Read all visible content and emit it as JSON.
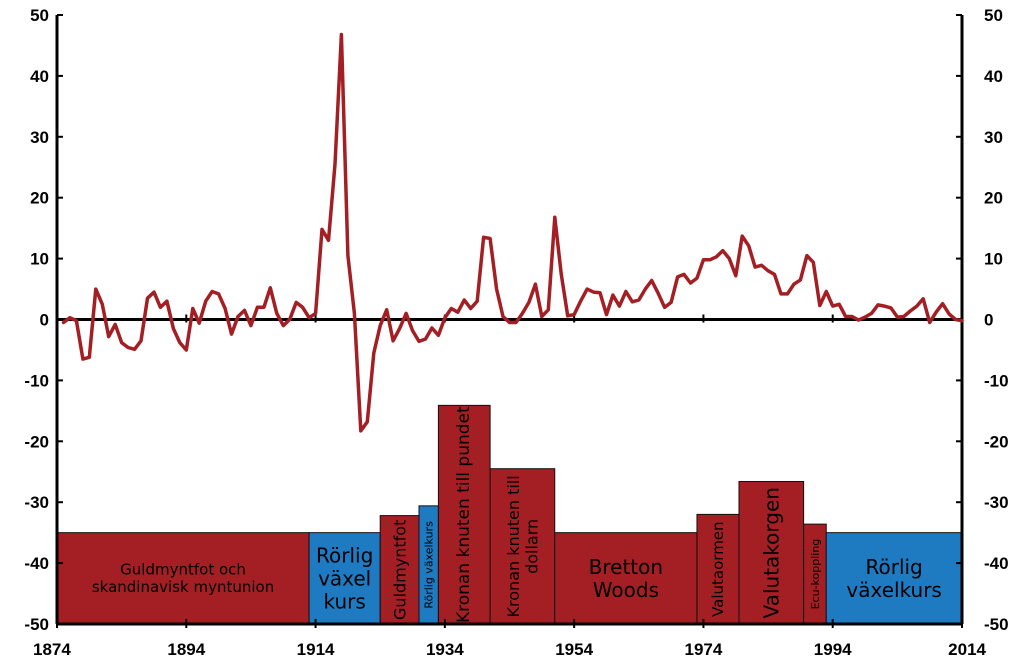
{
  "chart_data": {
    "type": "line",
    "title": "",
    "xlabel": "",
    "ylabel": "",
    "xlim": [
      1874,
      2014
    ],
    "ylim": [
      -50,
      50
    ],
    "grid": false,
    "x_ticks": [
      "1874",
      "1894",
      "1914",
      "1934",
      "1954",
      "1974",
      "1994",
      "2014"
    ],
    "y_ticks": [
      "50",
      "40",
      "30",
      "20",
      "10",
      "0",
      "-10",
      "-20",
      "-30",
      "-40",
      "-50"
    ],
    "series": [
      {
        "color": "#a31f24",
        "points": [
          [
            1875,
            -0.5
          ],
          [
            1876,
            0.3
          ],
          [
            1877,
            -0.2
          ],
          [
            1878,
            -6.5
          ],
          [
            1879,
            -6.2
          ],
          [
            1880,
            5.0
          ],
          [
            1881,
            2.5
          ],
          [
            1882,
            -2.8
          ],
          [
            1883,
            -0.8
          ],
          [
            1884,
            -3.8
          ],
          [
            1885,
            -4.6
          ],
          [
            1886,
            -4.9
          ],
          [
            1887,
            -3.5
          ],
          [
            1888,
            3.5
          ],
          [
            1889,
            4.5
          ],
          [
            1890,
            2.0
          ],
          [
            1891,
            3.0
          ],
          [
            1892,
            -1.5
          ],
          [
            1893,
            -3.8
          ],
          [
            1894,
            -5.0
          ],
          [
            1895,
            1.8
          ],
          [
            1896,
            -0.6
          ],
          [
            1897,
            3.0
          ],
          [
            1898,
            4.6
          ],
          [
            1899,
            4.2
          ],
          [
            1900,
            1.8
          ],
          [
            1901,
            -2.4
          ],
          [
            1902,
            0.5
          ],
          [
            1903,
            1.5
          ],
          [
            1904,
            -1.0
          ],
          [
            1905,
            2.0
          ],
          [
            1906,
            2.0
          ],
          [
            1907,
            5.2
          ],
          [
            1908,
            1.0
          ],
          [
            1909,
            -1.0
          ],
          [
            1910,
            0.0
          ],
          [
            1911,
            2.8
          ],
          [
            1912,
            2.0
          ],
          [
            1913,
            0.3
          ],
          [
            1914,
            1.0
          ],
          [
            1915,
            14.8
          ],
          [
            1916,
            13.0
          ],
          [
            1917,
            25.5
          ],
          [
            1918,
            46.8
          ],
          [
            1919,
            10.5
          ],
          [
            1920,
            1.0
          ],
          [
            1921,
            -18.3
          ],
          [
            1922,
            -16.8
          ],
          [
            1923,
            -5.5
          ],
          [
            1924,
            -1.0
          ],
          [
            1925,
            1.6
          ],
          [
            1926,
            -3.5
          ],
          [
            1927,
            -1.5
          ],
          [
            1928,
            1.0
          ],
          [
            1929,
            -1.8
          ],
          [
            1930,
            -3.6
          ],
          [
            1931,
            -3.2
          ],
          [
            1932,
            -1.4
          ],
          [
            1933,
            -2.6
          ],
          [
            1934,
            0.3
          ],
          [
            1935,
            1.8
          ],
          [
            1936,
            1.2
          ],
          [
            1937,
            3.2
          ],
          [
            1938,
            1.8
          ],
          [
            1939,
            3.0
          ],
          [
            1940,
            13.5
          ],
          [
            1941,
            13.3
          ],
          [
            1942,
            5.0
          ],
          [
            1943,
            0.5
          ],
          [
            1944,
            -0.5
          ],
          [
            1945,
            -0.5
          ],
          [
            1946,
            1.0
          ],
          [
            1947,
            2.8
          ],
          [
            1948,
            5.8
          ],
          [
            1949,
            0.5
          ],
          [
            1950,
            1.6
          ],
          [
            1951,
            16.8
          ],
          [
            1952,
            7.5
          ],
          [
            1953,
            0.6
          ],
          [
            1954,
            0.8
          ],
          [
            1955,
            3.0
          ],
          [
            1956,
            5.0
          ],
          [
            1957,
            4.5
          ],
          [
            1958,
            4.4
          ],
          [
            1959,
            0.8
          ],
          [
            1960,
            4.0
          ],
          [
            1961,
            2.2
          ],
          [
            1962,
            4.6
          ],
          [
            1963,
            2.9
          ],
          [
            1964,
            3.2
          ],
          [
            1965,
            5.0
          ],
          [
            1966,
            6.4
          ],
          [
            1967,
            4.3
          ],
          [
            1968,
            2.0
          ],
          [
            1969,
            2.8
          ],
          [
            1970,
            7.0
          ],
          [
            1971,
            7.4
          ],
          [
            1972,
            6.0
          ],
          [
            1973,
            6.8
          ],
          [
            1974,
            9.8
          ],
          [
            1975,
            9.8
          ],
          [
            1976,
            10.3
          ],
          [
            1977,
            11.3
          ],
          [
            1978,
            10.0
          ],
          [
            1979,
            7.2
          ],
          [
            1980,
            13.7
          ],
          [
            1981,
            12.1
          ],
          [
            1982,
            8.6
          ],
          [
            1983,
            8.9
          ],
          [
            1984,
            8.0
          ],
          [
            1985,
            7.4
          ],
          [
            1986,
            4.2
          ],
          [
            1987,
            4.2
          ],
          [
            1988,
            5.8
          ],
          [
            1989,
            6.5
          ],
          [
            1990,
            10.5
          ],
          [
            1991,
            9.4
          ],
          [
            1992,
            2.3
          ],
          [
            1993,
            4.6
          ],
          [
            1994,
            2.2
          ],
          [
            1995,
            2.5
          ],
          [
            1996,
            0.5
          ],
          [
            1997,
            0.5
          ],
          [
            1998,
            -0.1
          ],
          [
            1999,
            0.4
          ],
          [
            2000,
            1.0
          ],
          [
            2001,
            2.4
          ],
          [
            2002,
            2.2
          ],
          [
            2003,
            1.9
          ],
          [
            2004,
            0.4
          ],
          [
            2005,
            0.5
          ],
          [
            2006,
            1.4
          ],
          [
            2007,
            2.2
          ],
          [
            2008,
            3.4
          ],
          [
            2009,
            -0.5
          ],
          [
            2010,
            1.2
          ],
          [
            2011,
            2.6
          ],
          [
            2012,
            0.9
          ],
          [
            2013,
            0.0
          ],
          [
            2014,
            -0.2
          ]
        ]
      }
    ],
    "regimes": [
      {
        "label": "Guldmyntfot och skandinavisk myntunion",
        "start": 1874,
        "end": 1913,
        "top": -35,
        "color": "#a31f24",
        "orient": "h",
        "size": 15,
        "lines": [
          "Guldmyntfot och",
          "skandinavisk myntunion"
        ]
      },
      {
        "label": "Rörlig växel kurs",
        "start": 1913,
        "end": 1924,
        "top": -35,
        "color": "#1f7bc1",
        "orient": "h",
        "size": 20,
        "lines": [
          "Rörlig",
          "växel",
          "kurs"
        ]
      },
      {
        "label": "Guldmyntfot",
        "start": 1924,
        "end": 1930,
        "top": -32.2,
        "color": "#a31f24",
        "orient": "v",
        "size": 16,
        "lines": [
          "Guldmyntfot"
        ]
      },
      {
        "label": "Rörlig växelkurs",
        "start": 1930,
        "end": 1933,
        "top": -30.6,
        "color": "#1f7bc1",
        "orient": "v",
        "size": 11,
        "lines": [
          "Rörlig växelkurs"
        ]
      },
      {
        "label": "Kronan knuten till pundet",
        "start": 1933,
        "end": 1941,
        "top": -14.1,
        "color": "#a31f24",
        "orient": "v",
        "size": 17,
        "lines": [
          "Kronan knuten till pundet"
        ]
      },
      {
        "label": "Kronan knuten till dollarn",
        "start": 1941,
        "end": 1951,
        "top": -24.5,
        "color": "#a31f24",
        "orient": "v",
        "size": 16,
        "lines": [
          "Kronan knuten till",
          "dollarn"
        ]
      },
      {
        "label": "Bretton Woods",
        "start": 1951,
        "end": 1973,
        "top": -35,
        "color": "#a31f24",
        "orient": "h",
        "size": 20,
        "lines": [
          "Bretton",
          "Woods"
        ]
      },
      {
        "label": "Valutaormen",
        "start": 1973,
        "end": 1979.5,
        "top": -32,
        "color": "#a31f24",
        "orient": "v",
        "size": 15,
        "lines": [
          "Valutaormen"
        ]
      },
      {
        "label": "Valutakorgen",
        "start": 1979.5,
        "end": 1989.5,
        "top": -26.6,
        "color": "#a31f24",
        "orient": "v",
        "size": 20,
        "lines": [
          "Valutakorgen"
        ]
      },
      {
        "label": "Ecu-koppling",
        "start": 1989.5,
        "end": 1993,
        "top": -33.6,
        "color": "#a31f24",
        "orient": "v",
        "size": 11,
        "lines": [
          "Ecu-koppling"
        ]
      },
      {
        "label": "Rörlig växelkurs",
        "start": 1993,
        "end": 2014,
        "top": -35,
        "color": "#1f7bc1",
        "orient": "h",
        "size": 20,
        "lines": [
          "Rörlig",
          "växelkurs"
        ]
      }
    ]
  }
}
